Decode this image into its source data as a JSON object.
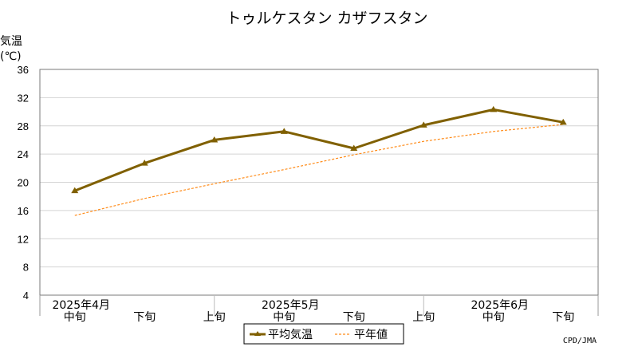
{
  "chart_data": {
    "type": "line",
    "title": "トゥルケスタン カザフスタン",
    "ylabel": "気温",
    "yunit": "(℃)",
    "ylim": [
      4,
      36
    ],
    "yticks": [
      "4",
      "8",
      "12",
      "16",
      "20",
      "24",
      "28",
      "32",
      "36"
    ],
    "grid": true,
    "legend_position": "bottom",
    "x_period_labels": [
      "中旬",
      "下旬",
      "上旬",
      "中旬",
      "下旬",
      "上旬",
      "中旬",
      "下旬"
    ],
    "x_month_labels": [
      {
        "label": "2025年4月",
        "index": 0
      },
      {
        "label": "2025年5月",
        "index": 3
      },
      {
        "label": "2025年6月",
        "index": 6
      }
    ],
    "series": [
      {
        "name": "平均気温",
        "color": "#806000",
        "style": "solid",
        "marker": "triangle",
        "values": [
          18.8,
          22.7,
          26.0,
          27.2,
          24.8,
          28.1,
          30.3,
          28.5
        ]
      },
      {
        "name": "平年値",
        "color": "#ff8c1a",
        "style": "dashed",
        "marker": "none",
        "values": [
          15.3,
          17.7,
          19.8,
          21.8,
          23.9,
          25.8,
          27.2,
          28.2
        ]
      }
    ],
    "source": "CPD/JMA"
  }
}
